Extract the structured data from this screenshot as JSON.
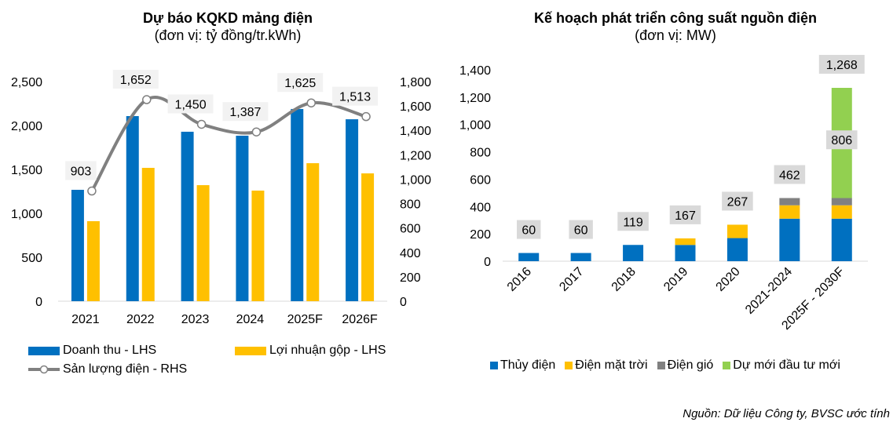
{
  "chart_data": [
    {
      "type": "bar",
      "title": "Dự báo KQKD mảng điện",
      "subtitle": "(đơn vị: tỷ đồng/tr.kWh)",
      "categories": [
        "2021",
        "2022",
        "2023",
        "2024",
        "2025F",
        "2026F"
      ],
      "series": [
        {
          "name": "Doanh thu - LHS",
          "kind": "bar",
          "axis": "left",
          "color": "#0070C0",
          "values": [
            1268,
            2107,
            1929,
            1884,
            2188,
            2071
          ]
        },
        {
          "name": "Lợi nhuận gộp - LHS",
          "kind": "bar",
          "axis": "left",
          "color": "#FFC000",
          "values": [
            911,
            1518,
            1321,
            1259,
            1571,
            1455
          ]
        },
        {
          "name": "Sản lượng điện - RHS",
          "kind": "line",
          "axis": "right",
          "color": "#808080",
          "values": [
            903,
            1652,
            1450,
            1387,
            1625,
            1513
          ],
          "labels": [
            "903",
            "1,652",
            "1,450",
            "1,387",
            "1,625",
            "1,513"
          ]
        }
      ],
      "left_axis": {
        "ylim": [
          0,
          2500
        ],
        "ticks": [
          0,
          500,
          1000,
          1500,
          2000,
          2500
        ],
        "tick_labels": [
          "0",
          "500",
          "1,000",
          "1,500",
          "2,000",
          "2,500"
        ]
      },
      "right_axis": {
        "ylim": [
          0,
          1800
        ],
        "ticks": [
          0,
          200,
          400,
          600,
          800,
          1000,
          1200,
          1400,
          1600,
          1800
        ],
        "tick_labels": [
          "0",
          "200",
          "400",
          "600",
          "800",
          "1,000",
          "1,200",
          "1,400",
          "1,600",
          "1,800"
        ]
      },
      "xlabel": "",
      "ylabel": "",
      "grid": false,
      "legend_position": "bottom"
    },
    {
      "type": "bar",
      "stacked": true,
      "title": "Kế hoạch phát triển công suất nguồn điện",
      "subtitle": "(đơn vị: MW)",
      "categories": [
        "2016",
        "2017",
        "2018",
        "2019",
        "2020",
        "2021-2024",
        "2025F - 2030F"
      ],
      "series": [
        {
          "name": "Thủy điện",
          "color": "#0070C0",
          "values": [
            60,
            60,
            119,
            119,
            169,
            311,
            311
          ]
        },
        {
          "name": "Điện mặt trời",
          "color": "#FFC000",
          "values": [
            0,
            0,
            0,
            48,
            98,
            98,
            98
          ]
        },
        {
          "name": "Điện gió",
          "color": "#808080",
          "values": [
            0,
            0,
            0,
            0,
            0,
            53,
            53
          ]
        },
        {
          "name": "Dự mới đầu tư mới",
          "color": "#92D050",
          "values": [
            0,
            0,
            0,
            0,
            0,
            0,
            806
          ]
        }
      ],
      "total_labels": [
        "60",
        "60",
        "119",
        "167",
        "267",
        "462",
        "1,268"
      ],
      "segment_labels": [
        {
          "category": "2025F - 2030F",
          "series": "Dự mới đầu tư mới",
          "label": "806"
        }
      ],
      "y_axis": {
        "ylim": [
          0,
          1400
        ],
        "ticks": [
          0,
          200,
          400,
          600,
          800,
          1000,
          1200,
          1400
        ],
        "tick_labels": [
          "0",
          "200",
          "400",
          "600",
          "800",
          "1,000",
          "1,200",
          "1,400"
        ]
      },
      "xlabel": "",
      "ylabel": "",
      "grid": false,
      "legend_position": "bottom"
    }
  ],
  "source_note": "Nguồn: Dữ liệu Công ty, BVSC ước tính"
}
